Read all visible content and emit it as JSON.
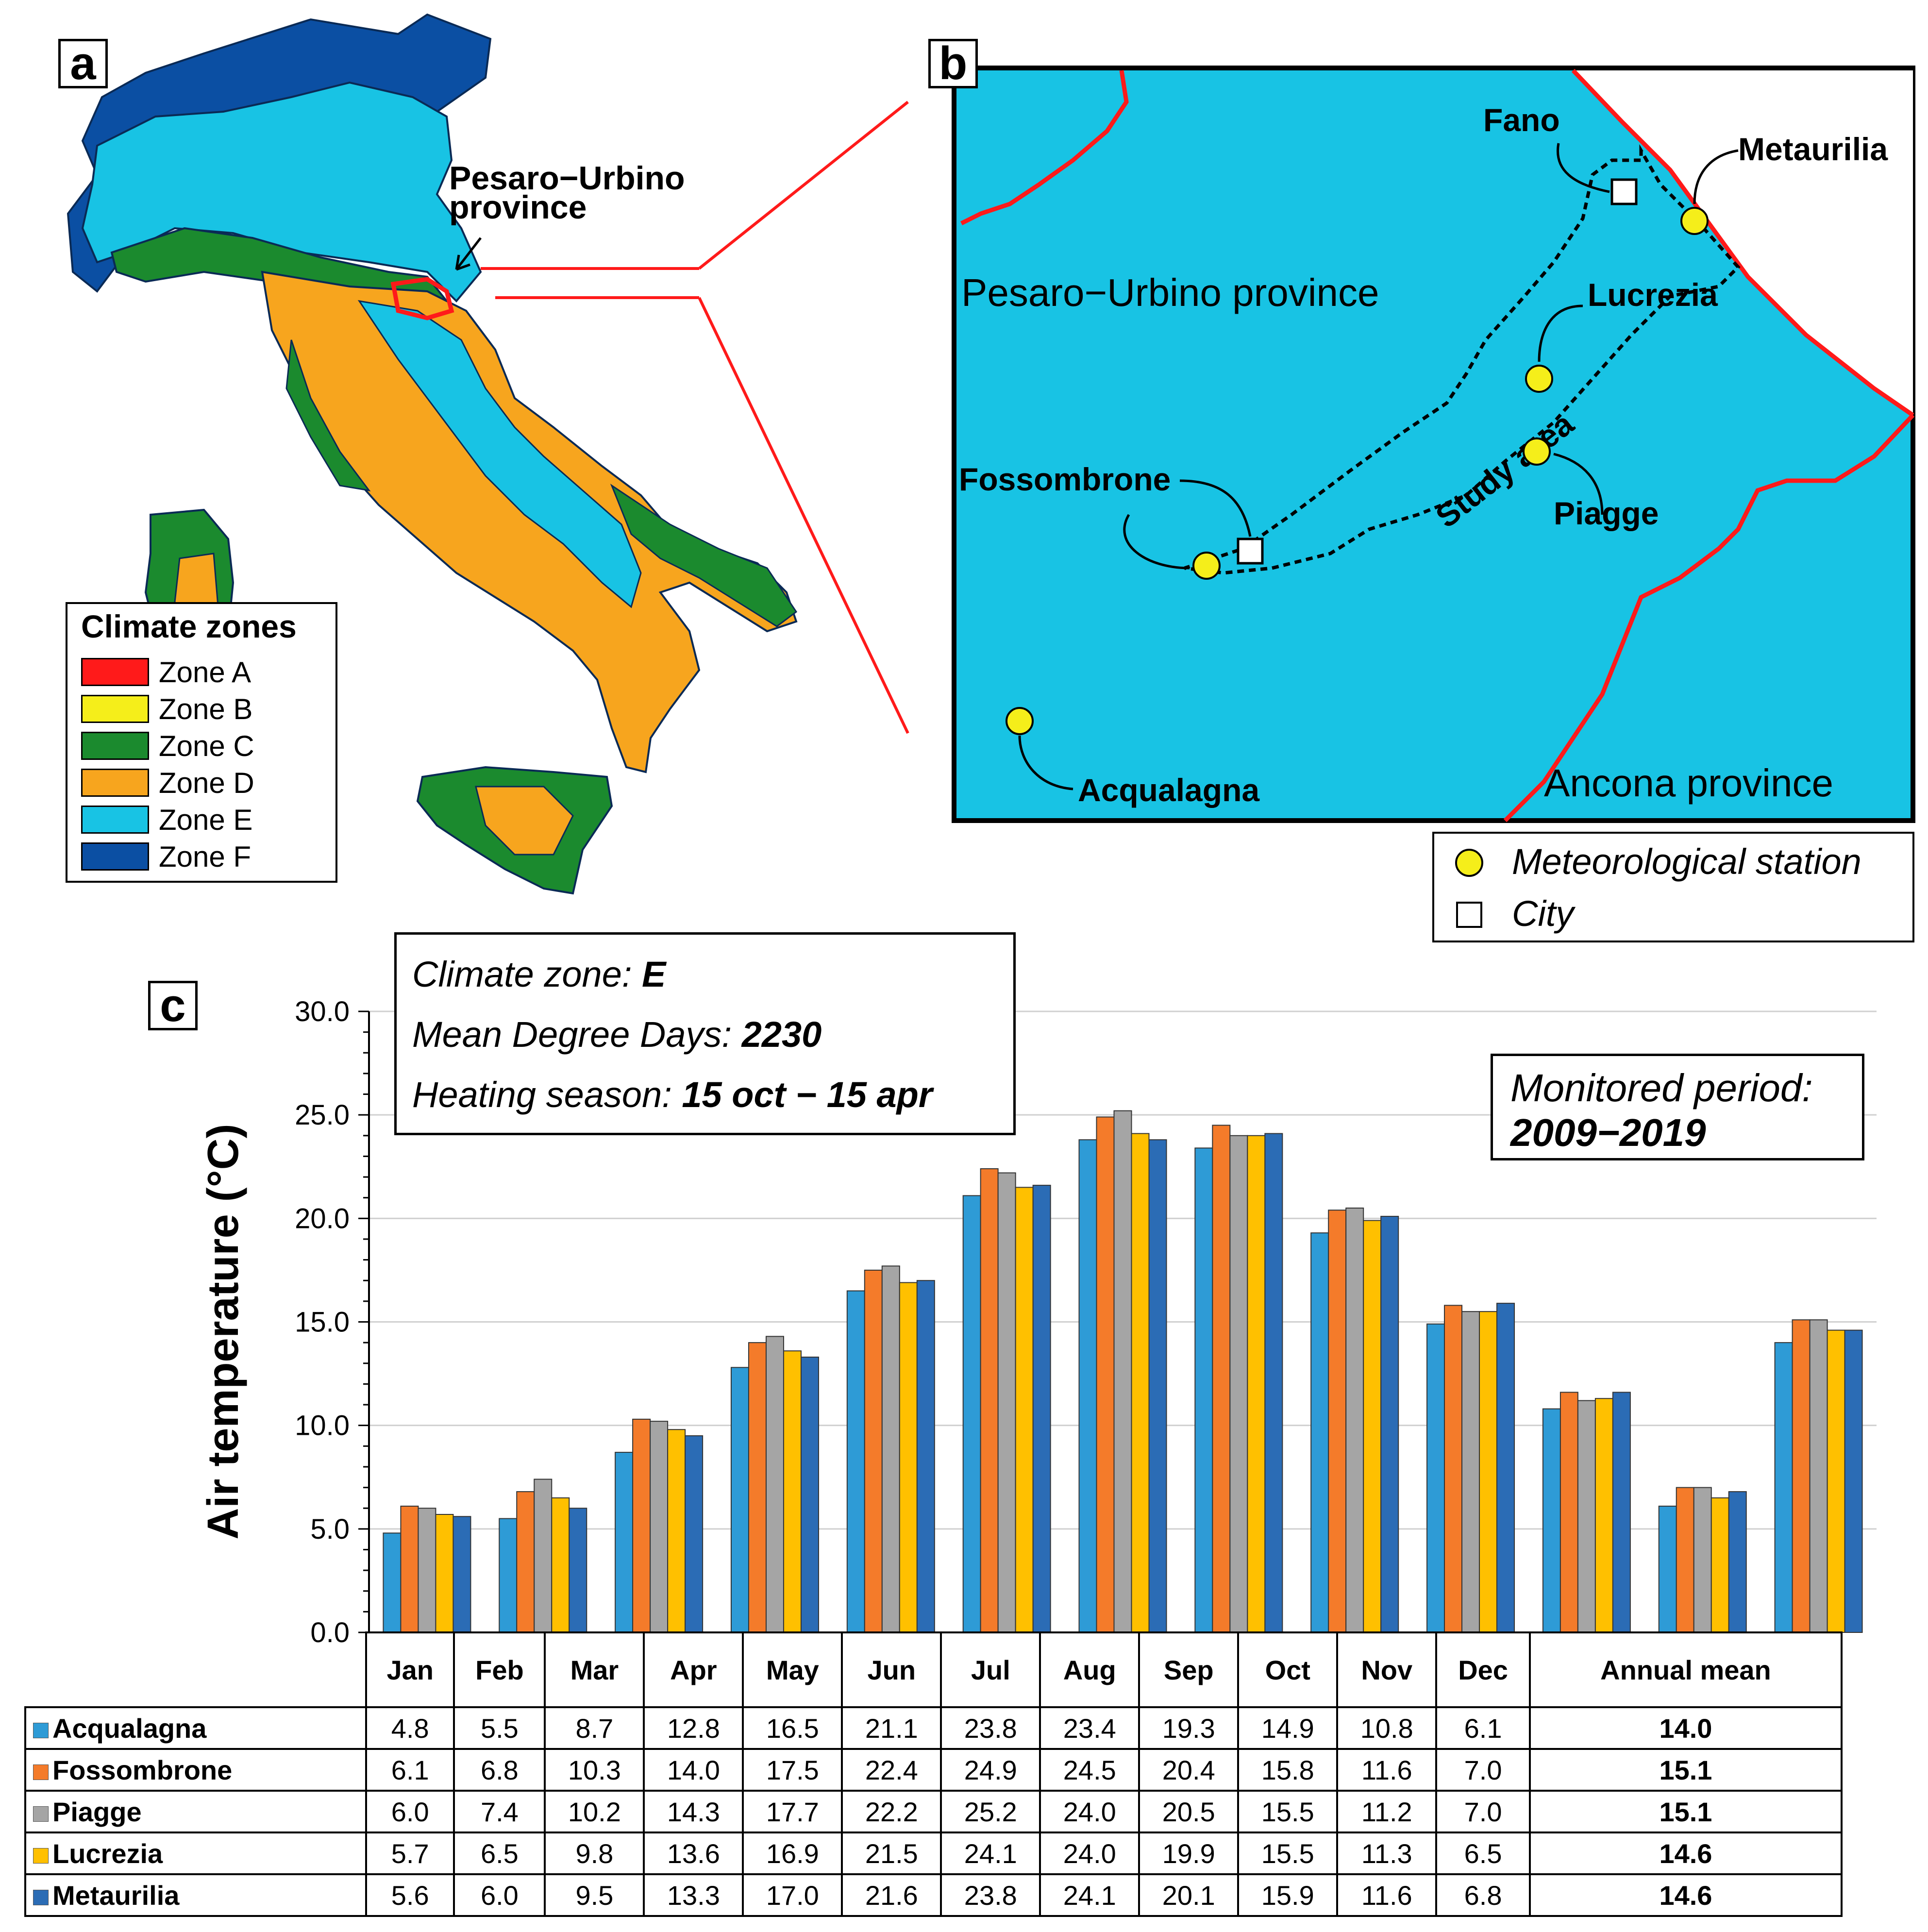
{
  "panel_a": {
    "letter": "a",
    "callout": [
      "Pesaro−Urbino",
      "province"
    ],
    "legend_title": "Climate zones",
    "zones": [
      {
        "label": "Zone A",
        "color": "#ff1a1a"
      },
      {
        "label": "Zone B",
        "color": "#f5ee1a"
      },
      {
        "label": "Zone C",
        "color": "#1b8a2e"
      },
      {
        "label": "Zone D",
        "color": "#f7a51e"
      },
      {
        "label": "Zone E",
        "color": "#18c3e4"
      },
      {
        "label": "Zone F",
        "color": "#0b4fa3"
      }
    ]
  },
  "panel_b": {
    "letter": "b",
    "region_labels": {
      "pesaro": "Pesaro−Urbino province",
      "ancona": "Ancona province",
      "study": "Study area"
    },
    "places": {
      "fano": "Fano",
      "metaurilia": "Metaurilia",
      "lucrezia": "Lucrezia",
      "piagge": "Piagge",
      "fossombrone": "Fossombrone",
      "acqualagna": "Acqualagna"
    },
    "legend": {
      "station": "Meteorological station",
      "city": "City"
    }
  },
  "panel_c": {
    "letter": "c",
    "info": {
      "zone_label": "Climate zone: ",
      "zone_value": "E",
      "dd_label": "Mean Degree Days: ",
      "dd_value": "2230",
      "season_label": "Heating season: ",
      "season_value": "15 oct − 15 apr"
    },
    "monitored": {
      "label": "Monitored period:",
      "value": "2009−2019"
    }
  },
  "chart_data": {
    "type": "bar",
    "ylabel": "Air temperature (°C)",
    "ylim": [
      0,
      30
    ],
    "yticks": [
      "0.0",
      "5.0",
      "10.0",
      "15.0",
      "20.0",
      "25.0",
      "30.0"
    ],
    "grid": true,
    "categories": [
      "Jan",
      "Feb",
      "Mar",
      "Apr",
      "May",
      "Jun",
      "Jul",
      "Aug",
      "Sep",
      "Oct",
      "Nov",
      "Dec",
      "Annual mean"
    ],
    "series": [
      {
        "name": "Acqualagna",
        "color": "#2e9bd6",
        "values": [
          4.8,
          5.5,
          8.7,
          12.8,
          16.5,
          21.1,
          23.8,
          23.4,
          19.3,
          14.9,
          10.8,
          6.1,
          14.0
        ],
        "display": [
          "4.8",
          "5.5",
          "8.7",
          "12.8",
          "16.5",
          "21.1",
          "23.8",
          "23.4",
          "19.3",
          "14.9",
          "10.8",
          "6.1",
          "14.0"
        ]
      },
      {
        "name": "Fossombrone",
        "color": "#f47b2a",
        "values": [
          6.1,
          6.8,
          10.3,
          14.0,
          17.5,
          22.4,
          24.9,
          24.5,
          20.4,
          15.8,
          11.6,
          7.0,
          15.1
        ],
        "display": [
          "6.1",
          "6.8",
          "10.3",
          "14.0",
          "17.5",
          "22.4",
          "24.9",
          "24.5",
          "20.4",
          "15.8",
          "11.6",
          "7.0",
          "15.1"
        ]
      },
      {
        "name": "Piagge",
        "color": "#a5a5a5",
        "values": [
          6.0,
          7.4,
          10.2,
          14.3,
          17.7,
          22.2,
          25.2,
          24.0,
          20.5,
          15.5,
          11.2,
          7.0,
          15.1
        ],
        "display": [
          "6.0",
          "7.4",
          "10.2",
          "14.3",
          "17.7",
          "22.2",
          "25.2",
          "24.0",
          "20.5",
          "15.5",
          "11.2",
          "7.0",
          "15.1"
        ]
      },
      {
        "name": "Lucrezia",
        "color": "#ffc000",
        "values": [
          5.7,
          6.5,
          9.8,
          13.6,
          16.9,
          21.5,
          24.1,
          24.0,
          19.9,
          15.5,
          11.3,
          6.5,
          14.6
        ],
        "display": [
          "5.7",
          "6.5",
          "9.8",
          "13.6",
          "16.9",
          "21.5",
          "24.1",
          "24.0",
          "19.9",
          "15.5",
          "11.3",
          "6.5",
          "14.6"
        ]
      },
      {
        "name": "Metaurilia",
        "color": "#2b6cb5",
        "values": [
          5.6,
          6.0,
          9.5,
          13.3,
          17.0,
          21.6,
          23.8,
          24.1,
          20.1,
          15.9,
          11.6,
          6.8,
          14.6
        ],
        "display": [
          "5.6",
          "6.0",
          "9.5",
          "13.3",
          "17.0",
          "21.6",
          "23.8",
          "24.1",
          "20.1",
          "15.9",
          "11.6",
          "6.8",
          "14.6"
        ]
      }
    ]
  }
}
